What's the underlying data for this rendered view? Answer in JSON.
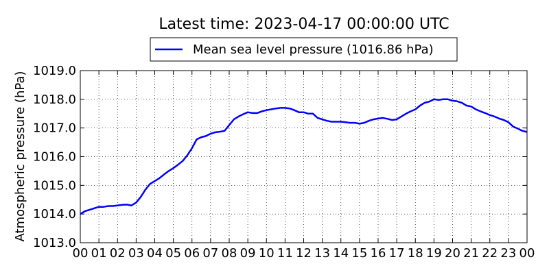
{
  "chart_data": {
    "type": "line",
    "title": "Latest time: 2023-04-17 00:00:00 UTC",
    "ylabel": "Atmospheric pressure (hPa)",
    "xlabel": "",
    "xlim": [
      0,
      24
    ],
    "ylim": [
      1013.0,
      1019.0
    ],
    "grid": true,
    "legend_position": "top-center",
    "x_tick_values": [
      0,
      1,
      2,
      3,
      4,
      5,
      6,
      7,
      8,
      9,
      10,
      11,
      12,
      13,
      14,
      15,
      16,
      17,
      18,
      19,
      20,
      21,
      22,
      23,
      24
    ],
    "x_tick_labels": [
      "00",
      "01",
      "02",
      "03",
      "04",
      "05",
      "06",
      "07",
      "08",
      "09",
      "10",
      "11",
      "12",
      "13",
      "14",
      "15",
      "16",
      "17",
      "18",
      "19",
      "20",
      "21",
      "22",
      "23",
      "00"
    ],
    "y_tick_values": [
      1013.0,
      1014.0,
      1015.0,
      1016.0,
      1017.0,
      1018.0,
      1019.0
    ],
    "y_tick_labels": [
      "1013.0",
      "1014.0",
      "1015.0",
      "1016.0",
      "1017.0",
      "1018.0",
      "1019.0"
    ],
    "series": [
      {
        "name": "Mean sea level pressure (1016.86 hPa)",
        "color": "#0000ff",
        "x": [
          0,
          0.25,
          0.5,
          0.75,
          1,
          1.25,
          1.5,
          1.75,
          2,
          2.25,
          2.5,
          2.75,
          3,
          3.25,
          3.5,
          3.75,
          4,
          4.25,
          4.5,
          4.75,
          5,
          5.25,
          5.5,
          5.75,
          6,
          6.25,
          6.5,
          6.75,
          7,
          7.25,
          7.5,
          7.75,
          8,
          8.25,
          8.5,
          8.75,
          9,
          9.25,
          9.5,
          9.75,
          10,
          10.25,
          10.5,
          10.75,
          11,
          11.25,
          11.5,
          11.75,
          12,
          12.25,
          12.5,
          12.75,
          13,
          13.25,
          13.5,
          13.75,
          14,
          14.25,
          14.5,
          14.75,
          15,
          15.25,
          15.5,
          15.75,
          16,
          16.25,
          16.5,
          16.75,
          17,
          17.25,
          17.5,
          17.75,
          18,
          18.25,
          18.5,
          18.75,
          19,
          19.25,
          19.5,
          19.75,
          20,
          20.25,
          20.5,
          20.75,
          21,
          21.25,
          21.5,
          21.75,
          22,
          22.25,
          22.5,
          22.75,
          23,
          23.25,
          23.5,
          23.75,
          24
        ],
        "y": [
          1014.0,
          1014.1,
          1014.15,
          1014.2,
          1014.25,
          1014.25,
          1014.28,
          1014.28,
          1014.3,
          1014.32,
          1014.33,
          1014.3,
          1014.4,
          1014.6,
          1014.85,
          1015.05,
          1015.15,
          1015.25,
          1015.38,
          1015.5,
          1015.6,
          1015.72,
          1015.85,
          1016.05,
          1016.3,
          1016.6,
          1016.68,
          1016.72,
          1016.8,
          1016.85,
          1016.87,
          1016.9,
          1017.1,
          1017.3,
          1017.4,
          1017.48,
          1017.55,
          1017.52,
          1017.52,
          1017.58,
          1017.62,
          1017.65,
          1017.68,
          1017.7,
          1017.7,
          1017.68,
          1017.62,
          1017.55,
          1017.55,
          1017.5,
          1017.5,
          1017.35,
          1017.3,
          1017.25,
          1017.22,
          1017.22,
          1017.22,
          1017.2,
          1017.18,
          1017.18,
          1017.15,
          1017.18,
          1017.25,
          1017.3,
          1017.33,
          1017.35,
          1017.32,
          1017.28,
          1017.3,
          1017.4,
          1017.5,
          1017.58,
          1017.65,
          1017.78,
          1017.88,
          1017.92,
          1018.0,
          1017.98,
          1018.0,
          1018.0,
          1017.95,
          1017.93,
          1017.88,
          1017.78,
          1017.75,
          1017.65,
          1017.58,
          1017.52,
          1017.45,
          1017.4,
          1017.33,
          1017.28,
          1017.2,
          1017.05,
          1016.98,
          1016.9,
          1016.86
        ]
      }
    ]
  }
}
